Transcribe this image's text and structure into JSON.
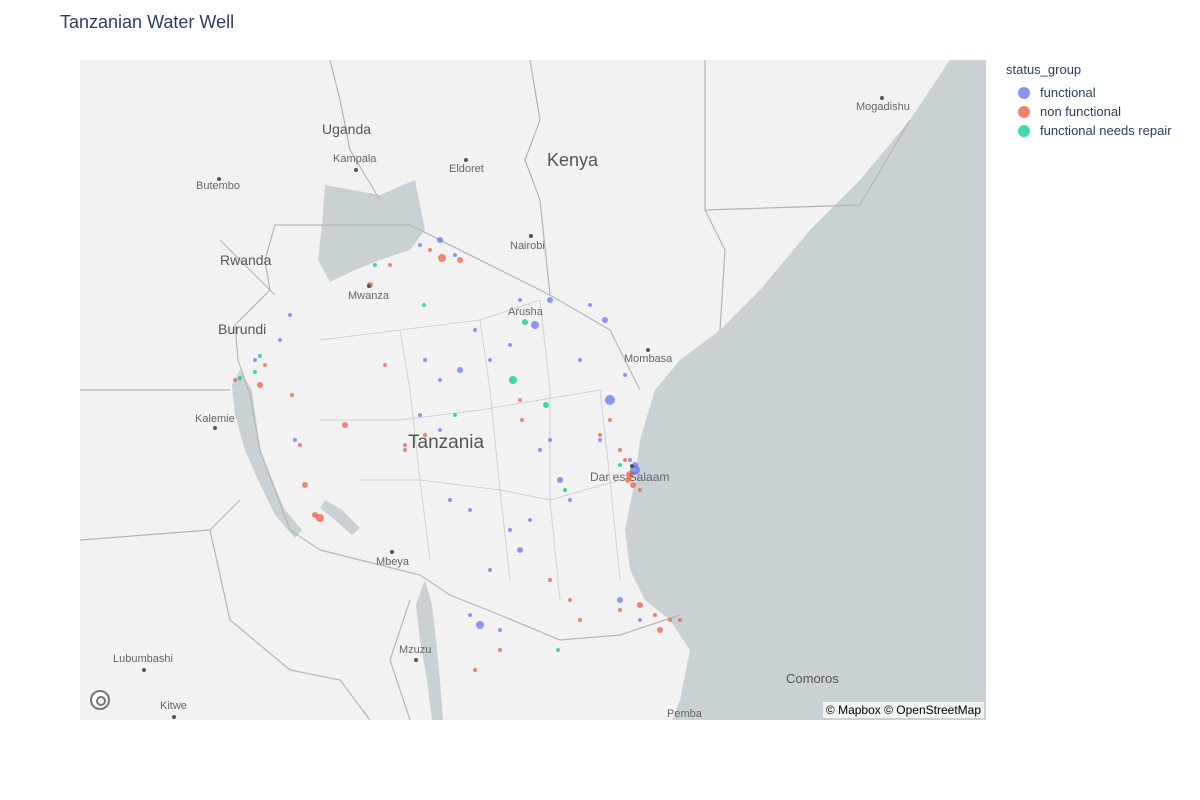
{
  "title": "Tanzanian Water Well",
  "legend": {
    "title": "status_group",
    "items": [
      {
        "label": "functional",
        "color": "#636efa"
      },
      {
        "label": "non functional",
        "color": "#ef553b"
      },
      {
        "label": "functional needs repair",
        "color": "#00cc96"
      }
    ]
  },
  "attribution": "© Mapbox © OpenStreetMap",
  "map": {
    "land_color": "#f2f2f2",
    "water_color": "#c9d1d4",
    "places": [
      {
        "name": "Uganda",
        "kind": "country"
      },
      {
        "name": "Kampala",
        "kind": "city"
      },
      {
        "name": "Eldoret",
        "kind": "city"
      },
      {
        "name": "Kenya",
        "kind": "bigcountry"
      },
      {
        "name": "Butembo",
        "kind": "city"
      },
      {
        "name": "Rwanda",
        "kind": "country"
      },
      {
        "name": "Nairobi",
        "kind": "city"
      },
      {
        "name": "Mwanza",
        "kind": "city"
      },
      {
        "name": "Burundi",
        "kind": "country"
      },
      {
        "name": "Arusha",
        "kind": "city"
      },
      {
        "name": "Mombasa",
        "kind": "city"
      },
      {
        "name": "Mogadishu",
        "kind": "city"
      },
      {
        "name": "Kalemie",
        "kind": "city"
      },
      {
        "name": "Tanzania",
        "kind": "tz"
      },
      {
        "name": "Dar es Salaam",
        "kind": "city"
      },
      {
        "name": "Mbeya",
        "kind": "city"
      },
      {
        "name": "Mzuzu",
        "kind": "city"
      },
      {
        "name": "Lubumbashi",
        "kind": "city"
      },
      {
        "name": "Kitwe",
        "kind": "city"
      },
      {
        "name": "Comoros",
        "kind": "country"
      },
      {
        "name": "Pemba",
        "kind": "city"
      }
    ]
  }
}
